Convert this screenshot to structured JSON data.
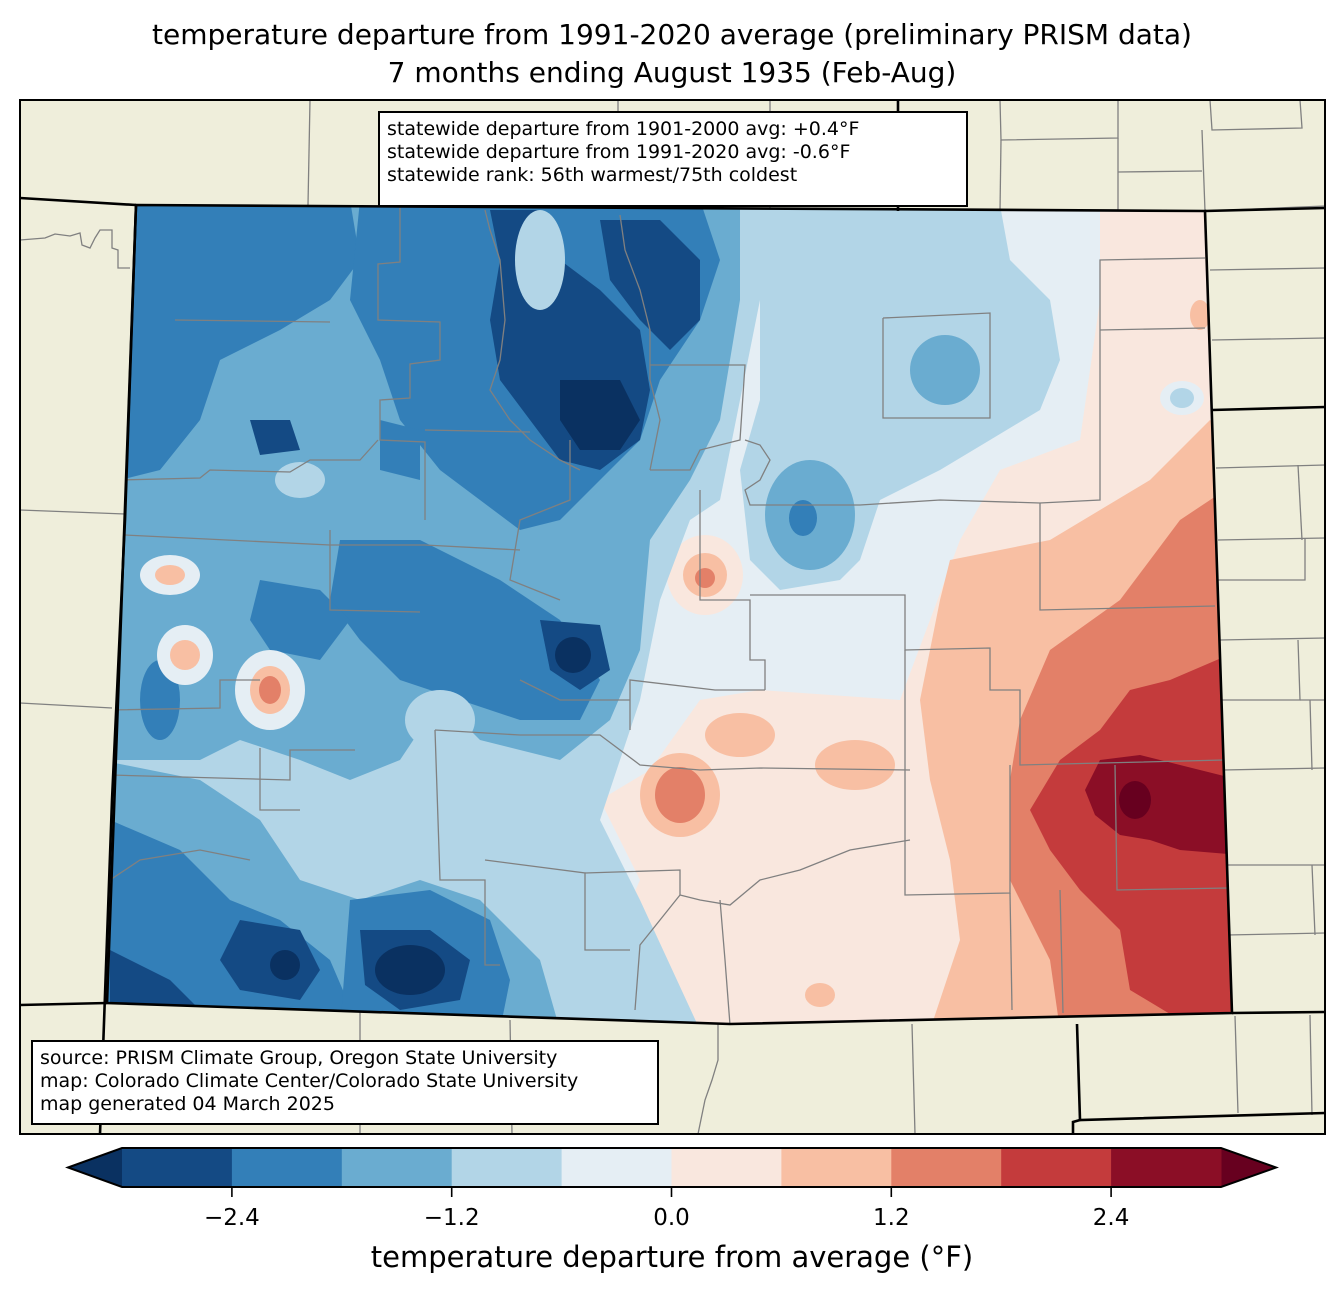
{
  "title": {
    "line1": "temperature departure from 1991-2020 average (preliminary PRISM data)",
    "line2": "7 months ending August 1935 (Feb-Aug)"
  },
  "stats_box": {
    "lines": [
      "statewide departure from 1901-2000 avg: +0.4°F",
      "statewide departure from 1991-2020 avg: -0.6°F",
      "statewide rank: 56th warmest/75th coldest"
    ]
  },
  "credits_box": {
    "lines": [
      "source: PRISM Climate Group, Oregon State University",
      "map: Colorado Climate Center/Colorado State University",
      "map generated 04 March 2025"
    ]
  },
  "colorbar": {
    "label": "temperature departure from average (°F)",
    "boundaries": [
      -3.0,
      -2.4,
      -1.8,
      -1.2,
      -0.6,
      0.0,
      0.6,
      1.2,
      1.8,
      2.4,
      3.0
    ],
    "colors": [
      "#144a84",
      "#337fb8",
      "#6aacd0",
      "#b2d5e7",
      "#e5eef4",
      "#f9e7de",
      "#f8bfa3",
      "#e38068",
      "#c43b3c",
      "#8b0e26"
    ],
    "under_color": "#0a3161",
    "over_color": "#67001f",
    "ticks": [
      {
        "value": -2.4,
        "label": "−2.4"
      },
      {
        "value": -1.2,
        "label": "−1.2"
      },
      {
        "value": 0.0,
        "label": "0.0"
      },
      {
        "value": 1.2,
        "label": "1.2"
      },
      {
        "value": 2.4,
        "label": "2.4"
      }
    ]
  },
  "map_colors": {
    "land_outside": "#efeedb",
    "county_lines": "#808080",
    "state_lines": "#000000"
  }
}
